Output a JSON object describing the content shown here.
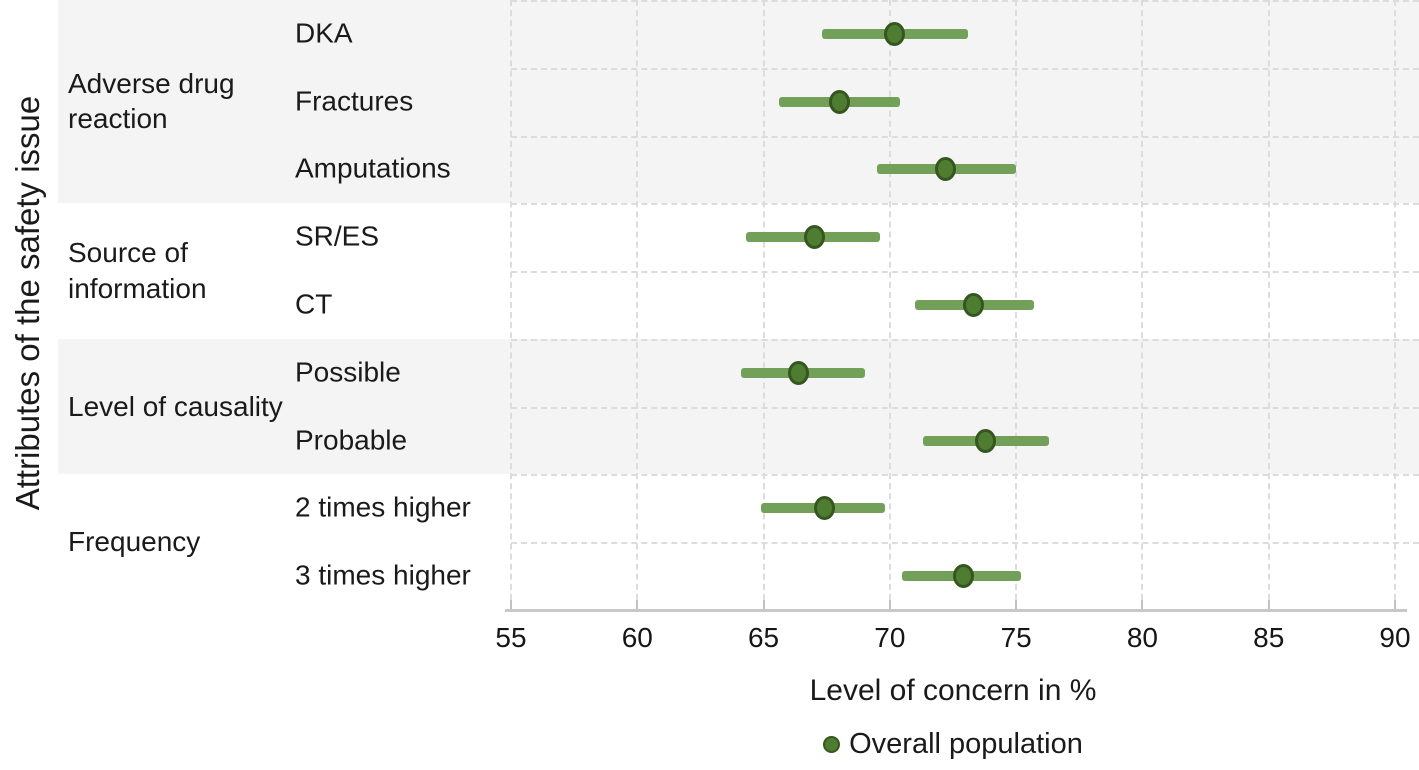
{
  "figure": {
    "y_axis_title": "Attributes of the safety issue",
    "x_axis_title": "Level of concern in %",
    "legend": {
      "marker": "filled-circle-icon",
      "label": "Overall population"
    }
  },
  "chart_data": {
    "type": "scatter",
    "subtype": "horizontal-dot-plot-with-error-bars",
    "title": "",
    "xlabel": "Level of concern in %",
    "ylabel": "Attributes of the safety issue",
    "xlim": [
      55,
      90
    ],
    "x_ticks": [
      55,
      60,
      65,
      70,
      75,
      80,
      85,
      90
    ],
    "grid": "dashed vertical gridlines at each x tick; dashed horizontal separators between rows; alternating group background shading",
    "legend_position": "bottom center",
    "series_name": "Overall population",
    "groups": [
      {
        "label": "Adverse drug reaction",
        "shaded": true,
        "rows": [
          {
            "label": "DKA",
            "value": 70.2,
            "ci_low": 67.3,
            "ci_high": 73.1
          },
          {
            "label": "Fractures",
            "value": 68.0,
            "ci_low": 65.6,
            "ci_high": 70.4
          },
          {
            "label": "Amputations",
            "value": 72.2,
            "ci_low": 69.5,
            "ci_high": 75.0
          }
        ]
      },
      {
        "label": "Source of information",
        "shaded": false,
        "rows": [
          {
            "label": "SR/ES",
            "value": 67.0,
            "ci_low": 64.3,
            "ci_high": 69.6
          },
          {
            "label": "CT",
            "value": 73.3,
            "ci_low": 71.0,
            "ci_high": 75.7
          }
        ]
      },
      {
        "label": "Level of causality",
        "shaded": true,
        "rows": [
          {
            "label": "Possible",
            "value": 66.4,
            "ci_low": 64.1,
            "ci_high": 69.0
          },
          {
            "label": "Probable",
            "value": 73.8,
            "ci_low": 71.3,
            "ci_high": 76.3
          }
        ]
      },
      {
        "label": "Frequency",
        "shaded": false,
        "rows": [
          {
            "label": "2 times higher",
            "value": 67.4,
            "ci_low": 64.9,
            "ci_high": 69.8
          },
          {
            "label": "3 times higher",
            "value": 72.9,
            "ci_low": 70.5,
            "ci_high": 75.2
          }
        ]
      }
    ],
    "colors": {
      "band_shaded": "#f4f4f4",
      "band_plain": "#ffffff",
      "gridline": "#dcdcdc",
      "axis_line": "#c8c8c8",
      "ci_bar": "#73a058",
      "marker_fill": "#4e7d32",
      "marker_border": "#36561f",
      "text": "#1a1a1a"
    }
  }
}
